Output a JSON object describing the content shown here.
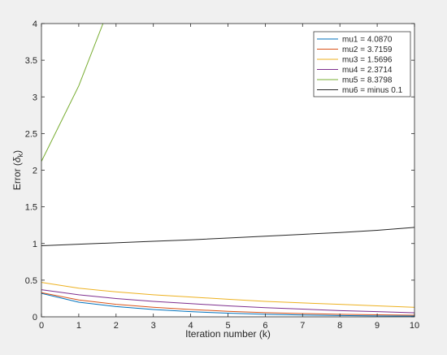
{
  "chart_data": {
    "type": "line",
    "title": "",
    "xlabel": "Iteration number (k)",
    "ylabel": "Error (δ_k)",
    "ylabel_parts": {
      "main": "Error (",
      "symbol": "δ",
      "sub": "k",
      "close": ")"
    },
    "xlim": [
      0,
      10
    ],
    "ylim": [
      0,
      4
    ],
    "xticks": [
      0,
      1,
      2,
      3,
      4,
      5,
      6,
      7,
      8,
      9,
      10
    ],
    "xtick_labels": [
      "0",
      "1",
      "2",
      "3",
      "4",
      "5",
      "6",
      "7",
      "8",
      "9",
      "10"
    ],
    "yticks": [
      0,
      0.5,
      1,
      1.5,
      2,
      2.5,
      3,
      3.5,
      4
    ],
    "ytick_labels": [
      "0",
      "0.5",
      "1",
      "1.5",
      "2",
      "2.5",
      "3",
      "3.5",
      "4"
    ],
    "grid": false,
    "legend_position": "top-right",
    "series": [
      {
        "name": "mu1 = 4.0870",
        "color": "#0072BD",
        "x": [
          0,
          1,
          2,
          3,
          4,
          5,
          6,
          7,
          8,
          9,
          10
        ],
        "y": [
          0.32,
          0.2,
          0.14,
          0.1,
          0.07,
          0.05,
          0.035,
          0.025,
          0.018,
          0.013,
          0.01
        ]
      },
      {
        "name": "mu2 = 3.7159",
        "color": "#D95319",
        "x": [
          0,
          1,
          2,
          3,
          4,
          5,
          6,
          7,
          8,
          9,
          10
        ],
        "y": [
          0.33,
          0.23,
          0.17,
          0.13,
          0.1,
          0.075,
          0.057,
          0.045,
          0.035,
          0.028,
          0.022
        ]
      },
      {
        "name": "mu3 = 1.5696",
        "color": "#EDB120",
        "x": [
          0,
          1,
          2,
          3,
          4,
          5,
          6,
          7,
          8,
          9,
          10
        ],
        "y": [
          0.47,
          0.39,
          0.34,
          0.3,
          0.27,
          0.24,
          0.21,
          0.19,
          0.17,
          0.15,
          0.13
        ]
      },
      {
        "name": "mu4 = 2.3714",
        "color": "#7E2F8E",
        "x": [
          0,
          1,
          2,
          3,
          4,
          5,
          6,
          7,
          8,
          9,
          10
        ],
        "y": [
          0.37,
          0.3,
          0.25,
          0.21,
          0.18,
          0.15,
          0.125,
          0.105,
          0.085,
          0.07,
          0.055
        ]
      },
      {
        "name": "mu5 = 8.3798",
        "color": "#77AC30",
        "x": [
          0,
          1,
          1.65
        ],
        "y": [
          2.12,
          3.15,
          4.0
        ]
      },
      {
        "name": "mu6 = minus 0.1",
        "color": "#262626",
        "x": [
          0,
          1,
          2,
          3,
          4,
          5,
          6,
          7,
          8,
          9,
          10
        ],
        "y": [
          0.97,
          0.99,
          1.01,
          1.03,
          1.05,
          1.075,
          1.1,
          1.125,
          1.15,
          1.18,
          1.22
        ]
      }
    ]
  }
}
